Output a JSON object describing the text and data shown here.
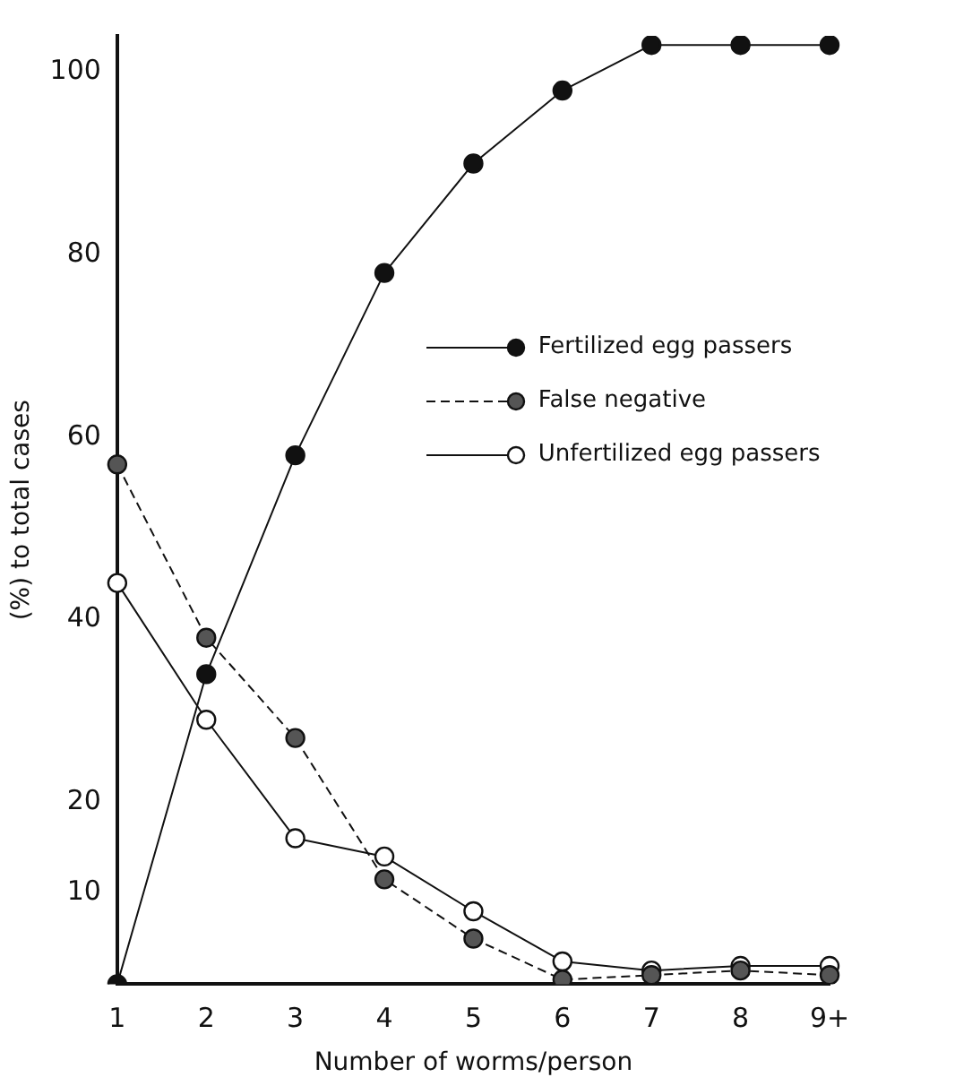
{
  "chart_data": {
    "type": "line",
    "xlabel": "Number of worms/person",
    "ylabel": "(%) to total cases",
    "categories": [
      "1",
      "2",
      "3",
      "4",
      "5",
      "6",
      "7",
      "8",
      "9+"
    ],
    "series": [
      {
        "name": "Fertilized egg passers",
        "color": "#111111",
        "line_style": "solid",
        "marker": "circle",
        "values": [
          0,
          34,
          58,
          78,
          90,
          98,
          103,
          103,
          103
        ]
      },
      {
        "name": "False negative",
        "color": "#555555",
        "line_style": "dashed",
        "marker": "circle",
        "values": [
          57,
          38,
          27,
          11.5,
          5,
          0.5,
          1,
          1.5,
          1
        ]
      },
      {
        "name": "Unfertilized egg passers",
        "color": "#ffffff",
        "line_style": "solid",
        "marker": "circle",
        "values": [
          44,
          29,
          16,
          14,
          8,
          2.5,
          1.5,
          2,
          2
        ]
      }
    ],
    "ylim": [
      0,
      104
    ],
    "yticks": [
      10,
      20,
      40,
      60,
      80,
      100
    ],
    "grid": false,
    "legend": "right"
  }
}
